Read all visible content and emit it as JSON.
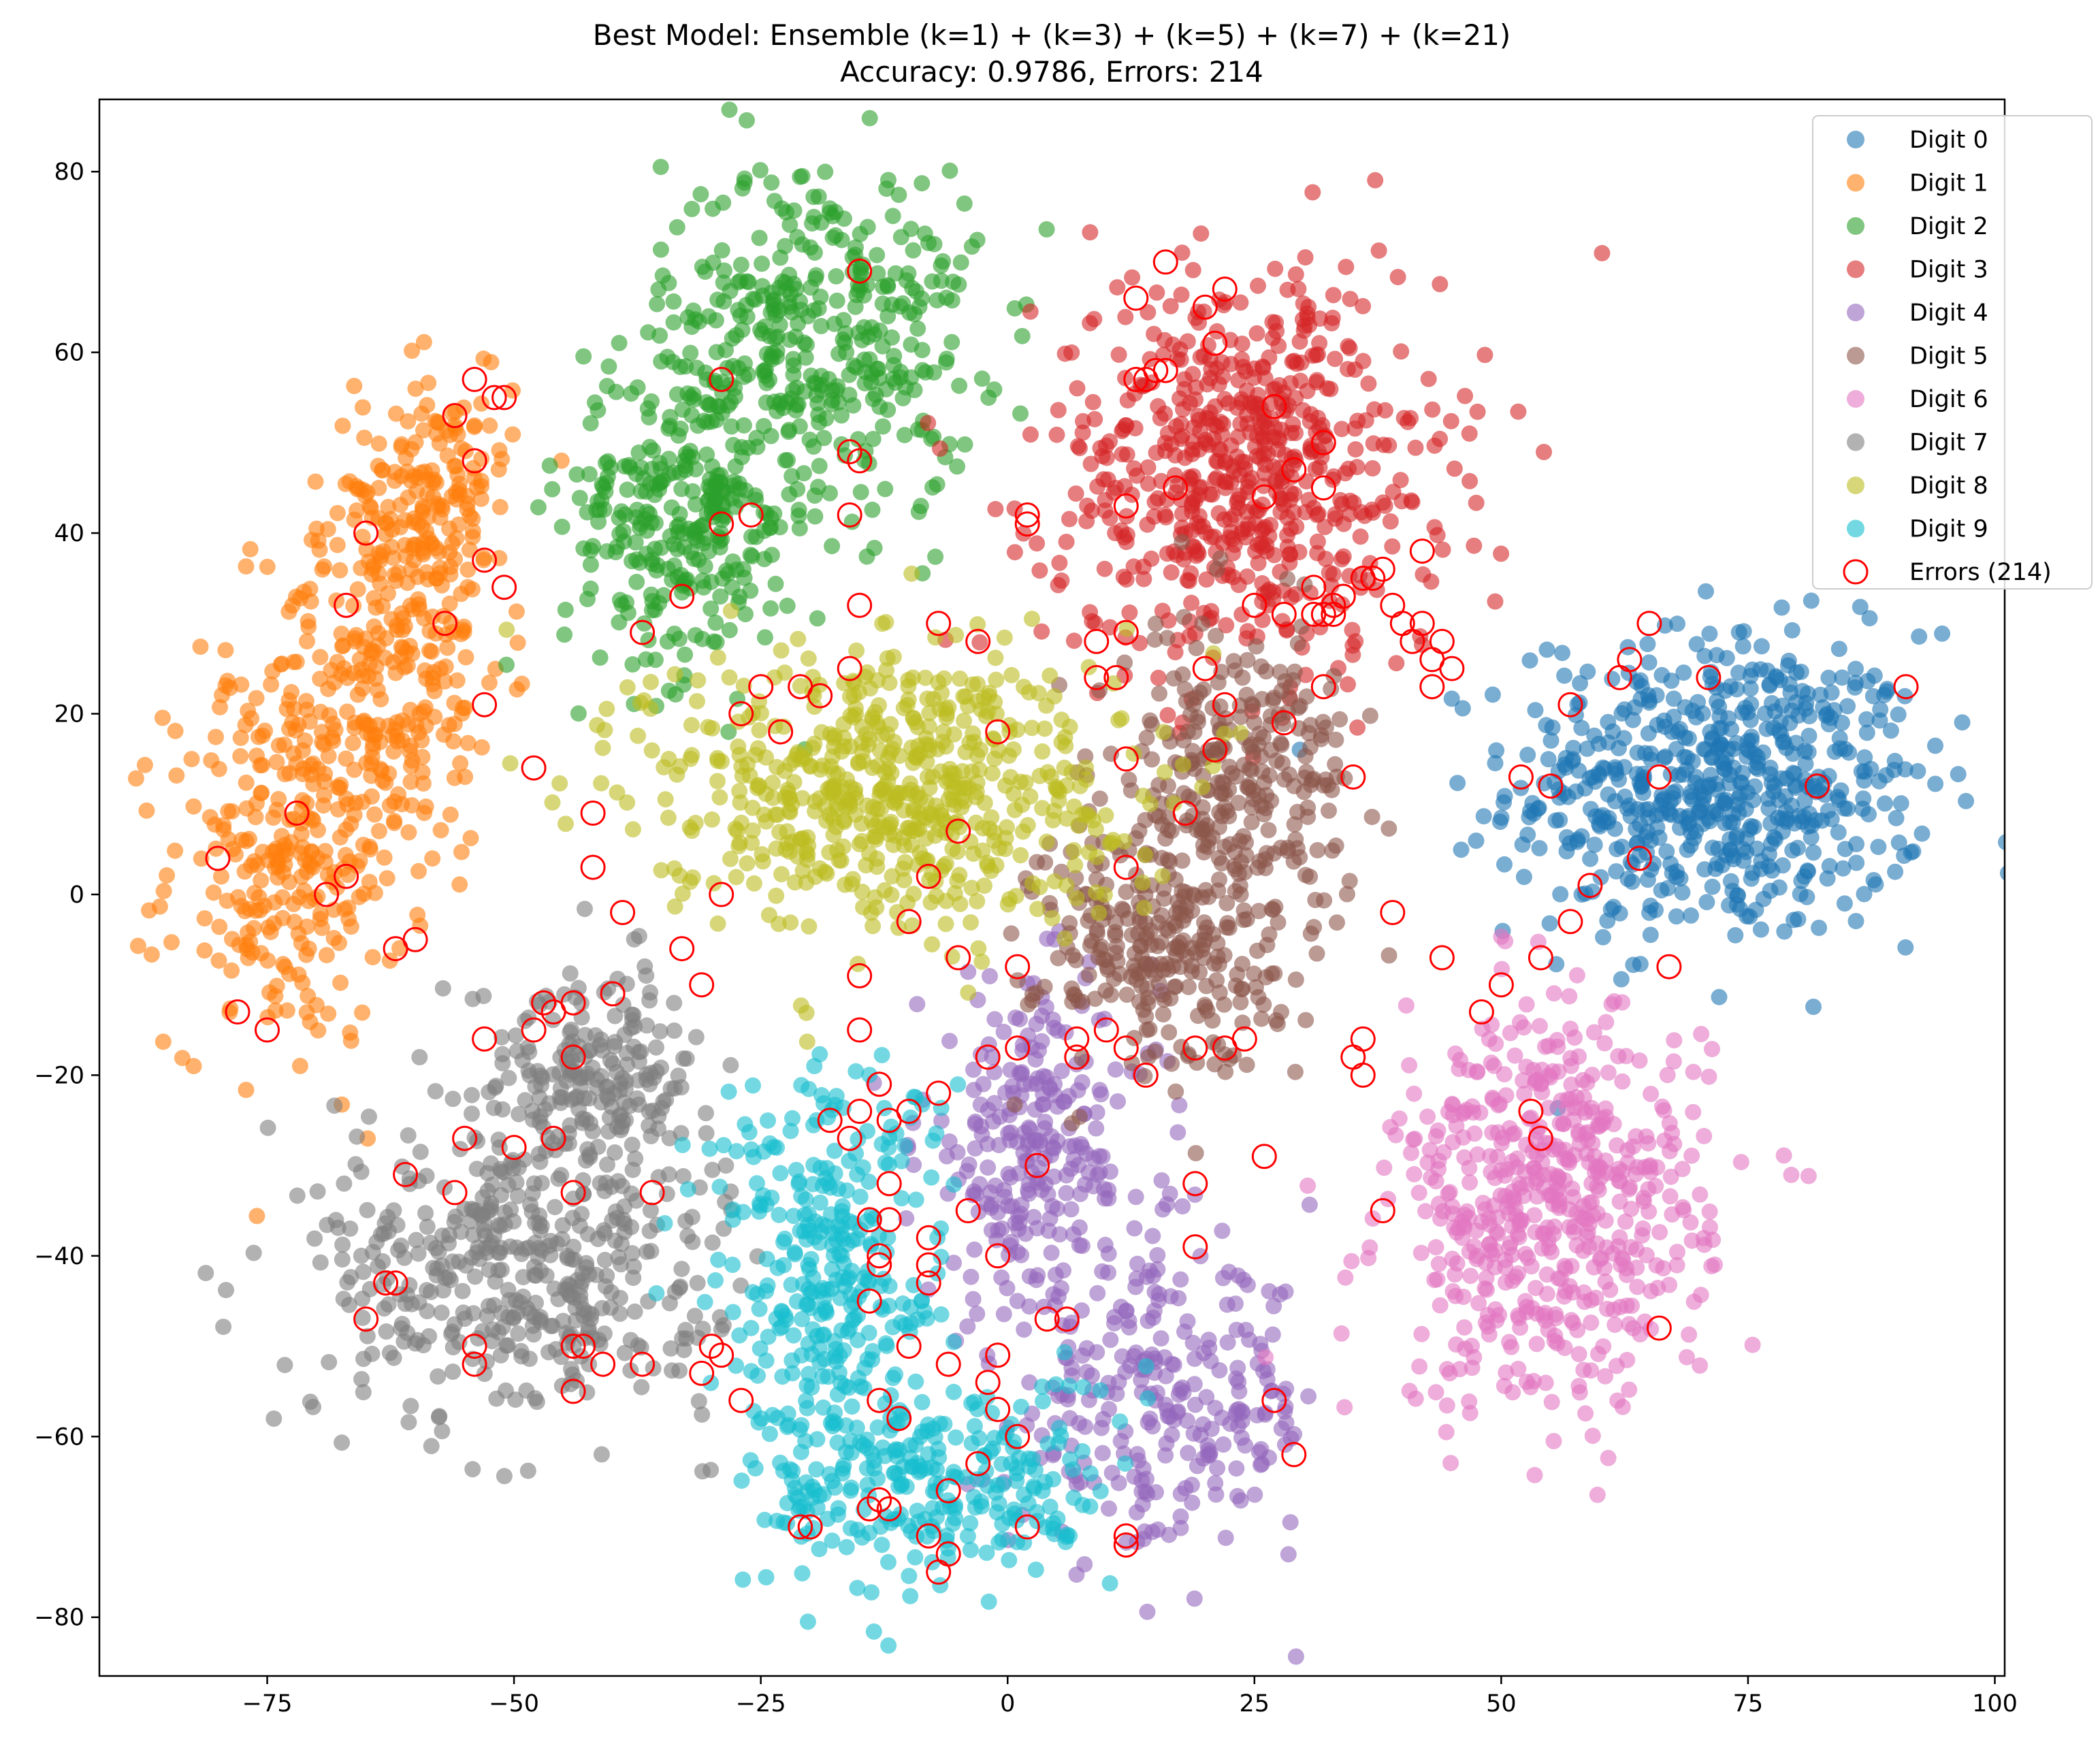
{
  "chart_data": {
    "type": "scatter",
    "title_line1": "Best Model: Ensemble (k=1) + (k=3) + (k=5) + (k=7) + (k=21)",
    "title_line2": "Accuracy: 0.9786, Errors: 214",
    "xlabel": "",
    "ylabel": "",
    "xlim": [
      -92,
      101
    ],
    "ylim": [
      -86.5,
      88
    ],
    "xticks": [
      -75,
      -50,
      -25,
      0,
      25,
      50,
      75,
      100
    ],
    "yticks": [
      -80,
      -60,
      -40,
      -20,
      0,
      20,
      40,
      60,
      80
    ],
    "grid": false,
    "legend_position": "top-right",
    "series": [
      {
        "name": "Digit 0",
        "color": "#1f77b4",
        "clusters": [
          {
            "cx": 72,
            "cy": 12,
            "sx": 10.5,
            "sy": 8.5,
            "n": 600
          }
        ]
      },
      {
        "name": "Digit 1",
        "color": "#ff7f0e",
        "clusters": [
          {
            "cx": -73,
            "cy": 3,
            "sx": 6,
            "sy": 10,
            "n": 260
          },
          {
            "cx": -63,
            "cy": 25,
            "sx": 6,
            "sy": 10,
            "n": 260
          },
          {
            "cx": -58,
            "cy": 45,
            "sx": 4,
            "sy": 7,
            "n": 160
          }
        ]
      },
      {
        "name": "Digit 2",
        "color": "#2ca02c",
        "clusters": [
          {
            "cx": -33,
            "cy": 42,
            "sx": 6,
            "sy": 9,
            "n": 300
          },
          {
            "cx": -19,
            "cy": 62,
            "sx": 8,
            "sy": 10,
            "n": 380
          }
        ]
      },
      {
        "name": "Digit 3",
        "color": "#d62728",
        "clusters": [
          {
            "cx": 24,
            "cy": 47,
            "sx": 10,
            "sy": 11,
            "n": 620
          }
        ]
      },
      {
        "name": "Digit 4",
        "color": "#9467bd",
        "clusters": [
          {
            "cx": 3,
            "cy": -28,
            "sx": 6,
            "sy": 9,
            "n": 260
          },
          {
            "cx": 16,
            "cy": -57,
            "sx": 8,
            "sy": 8,
            "n": 260
          }
        ]
      },
      {
        "name": "Digit 5",
        "color": "#8c564b",
        "clusters": [
          {
            "cx": 23,
            "cy": 12,
            "sx": 6,
            "sy": 9,
            "n": 300
          },
          {
            "cx": 15,
            "cy": -6,
            "sx": 6,
            "sy": 7,
            "n": 240
          }
        ]
      },
      {
        "name": "Digit 6",
        "color": "#e377c2",
        "clusters": [
          {
            "cx": 55,
            "cy": -35,
            "sx": 8,
            "sy": 11,
            "n": 560
          }
        ]
      },
      {
        "name": "Digit 7",
        "color": "#7f7f7f",
        "clusters": [
          {
            "cx": -42,
            "cy": -20,
            "sx": 6,
            "sy": 6,
            "n": 220
          },
          {
            "cx": -50,
            "cy": -42,
            "sx": 10,
            "sy": 8,
            "n": 420
          }
        ]
      },
      {
        "name": "Digit 8",
        "color": "#bcbd22",
        "clusters": [
          {
            "cx": -12,
            "cy": 12,
            "sx": 12,
            "sy": 8,
            "n": 620
          }
        ]
      },
      {
        "name": "Digit 9",
        "color": "#17becf",
        "clusters": [
          {
            "cx": -18,
            "cy": -42,
            "sx": 6,
            "sy": 12,
            "n": 320
          },
          {
            "cx": -7,
            "cy": -65,
            "sx": 9,
            "sy": 6,
            "n": 260
          }
        ]
      }
    ],
    "errors": {
      "name": "Errors (214)",
      "count": 214,
      "color": "#ff0000",
      "points": [
        [
          16,
          70
        ],
        [
          22,
          67
        ],
        [
          13,
          66
        ],
        [
          -15,
          69
        ],
        [
          -29,
          57
        ],
        [
          -54,
          57
        ],
        [
          -56,
          53
        ],
        [
          -51,
          55
        ],
        [
          -52,
          55
        ],
        [
          -54,
          48
        ],
        [
          -16,
          49
        ],
        [
          -15,
          48
        ],
        [
          -29,
          41
        ],
        [
          -26,
          42
        ],
        [
          -16,
          42
        ],
        [
          -33,
          33
        ],
        [
          -37,
          29
        ],
        [
          -15,
          32
        ],
        [
          -65,
          40
        ],
        [
          -53,
          37
        ],
        [
          -51,
          34
        ],
        [
          -67,
          32
        ],
        [
          -57,
          30
        ],
        [
          -53,
          21
        ],
        [
          -48,
          14
        ],
        [
          -25,
          23
        ],
        [
          -21,
          23
        ],
        [
          -16,
          25
        ],
        [
          -7,
          30
        ],
        [
          -72,
          9
        ],
        [
          -80,
          4
        ],
        [
          -67,
          2
        ],
        [
          -69,
          0
        ],
        [
          -62,
          -6
        ],
        [
          -60,
          -5
        ],
        [
          -42,
          9
        ],
        [
          -42,
          3
        ],
        [
          -39,
          -2
        ],
        [
          -29,
          0
        ],
        [
          -8,
          2
        ],
        [
          -5,
          7
        ],
        [
          -10,
          -3
        ],
        [
          -15,
          -9
        ],
        [
          -5,
          -7
        ],
        [
          1,
          -8
        ],
        [
          -78,
          -13
        ],
        [
          -75,
          -15
        ],
        [
          -33,
          -6
        ],
        [
          -31,
          -10
        ],
        [
          -44,
          -12
        ],
        [
          -40,
          -11
        ],
        [
          -47,
          -12
        ],
        [
          -46,
          -13
        ],
        [
          -53,
          -16
        ],
        [
          -48,
          -15
        ],
        [
          -44,
          -18
        ],
        [
          -15,
          -15
        ],
        [
          -46,
          -27
        ],
        [
          -50,
          -28
        ],
        [
          -55,
          -27
        ],
        [
          -56,
          -33
        ],
        [
          -44,
          -33
        ],
        [
          -61,
          -31
        ],
        [
          -36,
          -33
        ],
        [
          -15,
          -24
        ],
        [
          -13,
          -21
        ],
        [
          -12,
          -25
        ],
        [
          -10,
          -24
        ],
        [
          -7,
          -22
        ],
        [
          -2,
          -18
        ],
        [
          1,
          -17
        ],
        [
          -18,
          -25
        ],
        [
          -16,
          -27
        ],
        [
          -12,
          -32
        ],
        [
          -14,
          -36
        ],
        [
          -12,
          -36
        ],
        [
          -13,
          -40
        ],
        [
          -13,
          -41
        ],
        [
          -8,
          -38
        ],
        [
          -8,
          -41
        ],
        [
          -8,
          -43
        ],
        [
          -14,
          -45
        ],
        [
          -10,
          -50
        ],
        [
          -13,
          -56
        ],
        [
          -11,
          -58
        ],
        [
          -6,
          -52
        ],
        [
          -2,
          -54
        ],
        [
          -1,
          -51
        ],
        [
          -1,
          -57
        ],
        [
          1,
          -60
        ],
        [
          4,
          -47
        ],
        [
          6,
          -47
        ],
        [
          -30,
          -50
        ],
        [
          -31,
          -53
        ],
        [
          -29,
          -51
        ],
        [
          -27,
          -56
        ],
        [
          -62,
          -43
        ],
        [
          -63,
          -43
        ],
        [
          -65,
          -47
        ],
        [
          -54,
          -50
        ],
        [
          -54,
          -52
        ],
        [
          -44,
          -50
        ],
        [
          -43,
          -50
        ],
        [
          -41,
          -52
        ],
        [
          -37,
          -52
        ],
        [
          -44,
          -55
        ],
        [
          -20,
          -70
        ],
        [
          -21,
          -70
        ],
        [
          -13,
          -67
        ],
        [
          -14,
          -68
        ],
        [
          -12,
          -68
        ],
        [
          -8,
          -71
        ],
        [
          -6,
          -66
        ],
        [
          -6,
          -73
        ],
        [
          -7,
          -75
        ],
        [
          2,
          -70
        ],
        [
          12,
          -71
        ],
        [
          12,
          -72
        ],
        [
          -1,
          18
        ],
        [
          2,
          41
        ],
        [
          2,
          42
        ],
        [
          12,
          43
        ],
        [
          13,
          57
        ],
        [
          14,
          57
        ],
        [
          16,
          58
        ],
        [
          20,
          65
        ],
        [
          21,
          61
        ],
        [
          27,
          54
        ],
        [
          32,
          50
        ],
        [
          32,
          45
        ],
        [
          26,
          44
        ],
        [
          29,
          47
        ],
        [
          31,
          34
        ],
        [
          32,
          31
        ],
        [
          33,
          31
        ],
        [
          31,
          31
        ],
        [
          33,
          32
        ],
        [
          34,
          33
        ],
        [
          37,
          35
        ],
        [
          39,
          32
        ],
        [
          42,
          38
        ],
        [
          41,
          28
        ],
        [
          43,
          26
        ],
        [
          42,
          30
        ],
        [
          43,
          23
        ],
        [
          28,
          31
        ],
        [
          25,
          32
        ],
        [
          22,
          21
        ],
        [
          20,
          25
        ],
        [
          21,
          16
        ],
        [
          12,
          29
        ],
        [
          9,
          28
        ],
        [
          9,
          24
        ],
        [
          11,
          24
        ],
        [
          12,
          15
        ],
        [
          18,
          9
        ],
        [
          12,
          3
        ],
        [
          28,
          19
        ],
        [
          32,
          23
        ],
        [
          35,
          13
        ],
        [
          7,
          -16
        ],
        [
          12,
          -17
        ],
        [
          14,
          -20
        ],
        [
          19,
          -17
        ],
        [
          22,
          -17
        ],
        [
          24,
          -16
        ],
        [
          19,
          -32
        ],
        [
          19,
          -39
        ],
        [
          26,
          -29
        ],
        [
          27,
          -56
        ],
        [
          29,
          -62
        ],
        [
          36,
          -16
        ],
        [
          36,
          -20
        ],
        [
          35,
          -18
        ],
        [
          38,
          -35
        ],
        [
          39,
          -2
        ],
        [
          44,
          -7
        ],
        [
          48,
          -13
        ],
        [
          50,
          -10
        ],
        [
          54,
          -7
        ],
        [
          53,
          -24
        ],
        [
          54,
          -27
        ],
        [
          52,
          13
        ],
        [
          55,
          12
        ],
        [
          57,
          21
        ],
        [
          57,
          -3
        ],
        [
          59,
          1
        ],
        [
          62,
          24
        ],
        [
          63,
          26
        ],
        [
          64,
          4
        ],
        [
          65,
          30
        ],
        [
          66,
          13
        ],
        [
          71,
          24
        ],
        [
          82,
          12
        ],
        [
          91,
          23
        ],
        [
          67,
          -8
        ],
        [
          66,
          -48
        ],
        [
          36,
          35
        ],
        [
          38,
          36
        ],
        [
          44,
          28
        ],
        [
          45,
          25
        ],
        [
          40,
          30
        ],
        [
          15,
          58
        ],
        [
          17,
          45
        ],
        [
          -23,
          18
        ],
        [
          -19,
          22
        ],
        [
          -27,
          20
        ],
        [
          -3,
          28
        ],
        [
          3,
          -30
        ],
        [
          7,
          -18
        ],
        [
          10,
          -15
        ],
        [
          -4,
          -35
        ],
        [
          -1,
          -40
        ],
        [
          -3,
          -63
        ]
      ]
    }
  }
}
